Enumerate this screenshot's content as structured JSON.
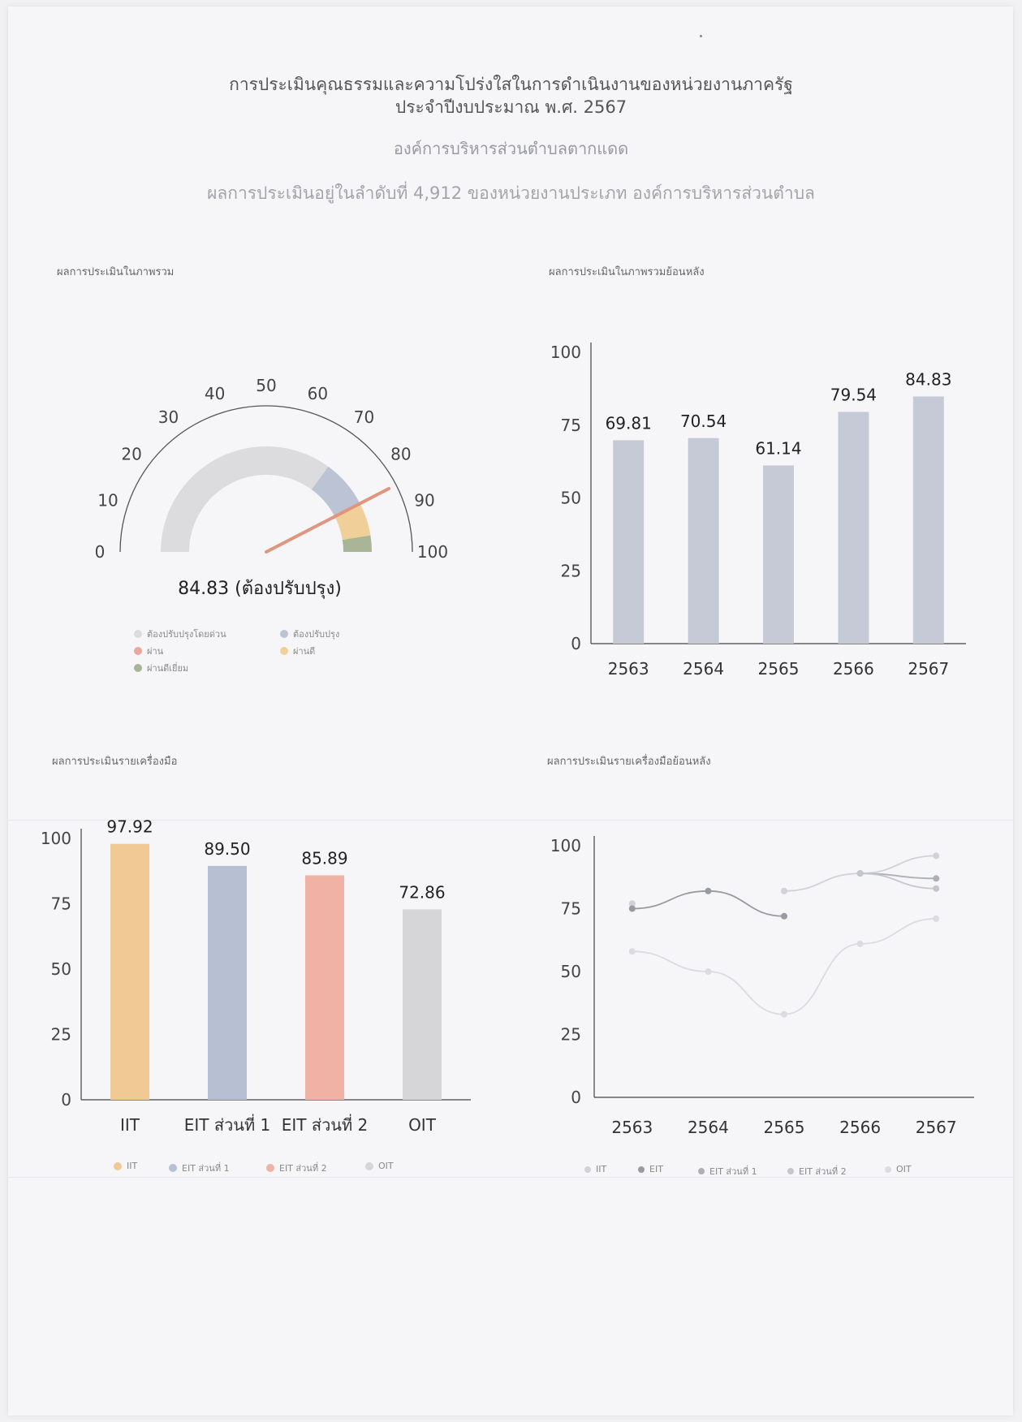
{
  "header": {
    "title_line1": "การประเมินคุณธรรมและความโปร่งใสในการดำเนินงานของหน่วยงานภาครัฐ",
    "title_line2": "ประจำปีงบประมาณ พ.ศ. 2567",
    "organization": "องค์การบริหารส่วนตำบลตากแดด",
    "rank_text": "ผลการประเมินอยู่ในลำดับที่ 4,912 ของหน่วยงานประเภท องค์การบริหารส่วนตำบล"
  },
  "panels": {
    "overall": "ผลการประเมินในภาพรวม",
    "overall_history": "ผลการประเมินในภาพรวมย้อนหลัง",
    "by_tool": "ผลการประเมินรายเครื่องมือ",
    "by_tool_history": "ผลการประเมินรายเครื่องมือย้อนหลัง"
  },
  "colors": {
    "needs_urgent": "#dcdcdf",
    "needs_improve": "#bcc3d4",
    "pass": "#e8a89c",
    "good": "#f1cf98",
    "excellent": "#a9b596",
    "needle": "#e0957f",
    "bar_gray": "#c6cad6",
    "iit": "#f1c994",
    "eit1": "#b7bfd3",
    "eit2": "#f0b2a4",
    "oit": "#d6d6d8",
    "line": "#cfcfd4"
  },
  "chart_data": [
    {
      "type": "gauge",
      "value": 84.83,
      "value_label": "84.83 (ต้องปรับปรุง)",
      "range": [
        0,
        100
      ],
      "ticks": [
        0,
        10,
        20,
        30,
        40,
        50,
        60,
        70,
        80,
        90,
        100
      ],
      "bands": [
        {
          "name": "ต้องปรับปรุงโดยด่วน",
          "from": 0,
          "to": 70,
          "color": "#dcdcdf"
        },
        {
          "name": "ต้องปรับปรุง",
          "from": 70,
          "to": 85,
          "color": "#bcc3d4"
        },
        {
          "name": "ผ่าน",
          "from": 85,
          "to": 85,
          "color": "#e8a89c"
        },
        {
          "name": "ผ่านดี",
          "from": 85,
          "to": 95,
          "color": "#f1cf98"
        },
        {
          "name": "ผ่านดีเยี่ยม",
          "from": 95,
          "to": 100,
          "color": "#a9b596"
        }
      ],
      "legend": [
        "ต้องปรับปรุงโดยด่วน",
        "ต้องปรับปรุง",
        "ผ่าน",
        "ผ่านดี",
        "ผ่านดีเยี่ยม"
      ]
    },
    {
      "type": "bar",
      "categories": [
        "2563",
        "2564",
        "2565",
        "2566",
        "2567"
      ],
      "values": [
        69.81,
        70.54,
        61.14,
        79.54,
        84.83
      ],
      "value_labels": [
        "69.81",
        "70.54",
        "61.14",
        "79.54",
        "84.83"
      ],
      "yticks": [
        "0",
        "25",
        "50",
        "75",
        "100"
      ],
      "ylim": [
        0,
        100
      ]
    },
    {
      "type": "bar",
      "categories": [
        "IIT",
        "EIT ส่วนที่ 1",
        "EIT ส่วนที่ 2",
        "OIT"
      ],
      "values": [
        97.92,
        89.5,
        85.89,
        72.86
      ],
      "value_labels": [
        "97.92",
        "89.50",
        "85.89",
        "72.86"
      ],
      "yticks": [
        "0",
        "25",
        "50",
        "75",
        "100"
      ],
      "ylim": [
        0,
        100
      ],
      "legend": [
        "IIT",
        "EIT ส่วนที่ 1",
        "EIT ส่วนที่ 2",
        "OIT"
      ]
    },
    {
      "type": "line",
      "x": [
        "2563",
        "2564",
        "2565",
        "2566",
        "2567"
      ],
      "yticks": [
        "0",
        "25",
        "50",
        "75",
        "100"
      ],
      "ylim": [
        0,
        100
      ],
      "series": [
        {
          "name": "IIT",
          "values": [
            77,
            null,
            82,
            89,
            96
          ]
        },
        {
          "name": "EIT",
          "values": [
            75,
            82,
            72,
            null,
            null
          ]
        },
        {
          "name": "EIT ส่วนที่ 1",
          "values": [
            null,
            null,
            null,
            89,
            87
          ]
        },
        {
          "name": "EIT ส่วนที่ 2",
          "values": [
            null,
            null,
            null,
            89,
            83
          ]
        },
        {
          "name": "OIT",
          "values": [
            58,
            50,
            33,
            61,
            71
          ]
        }
      ],
      "legend": [
        "IIT",
        "EIT",
        "EIT ส่วนที่ 1",
        "EIT ส่วนที่ 2",
        "OIT"
      ]
    }
  ]
}
